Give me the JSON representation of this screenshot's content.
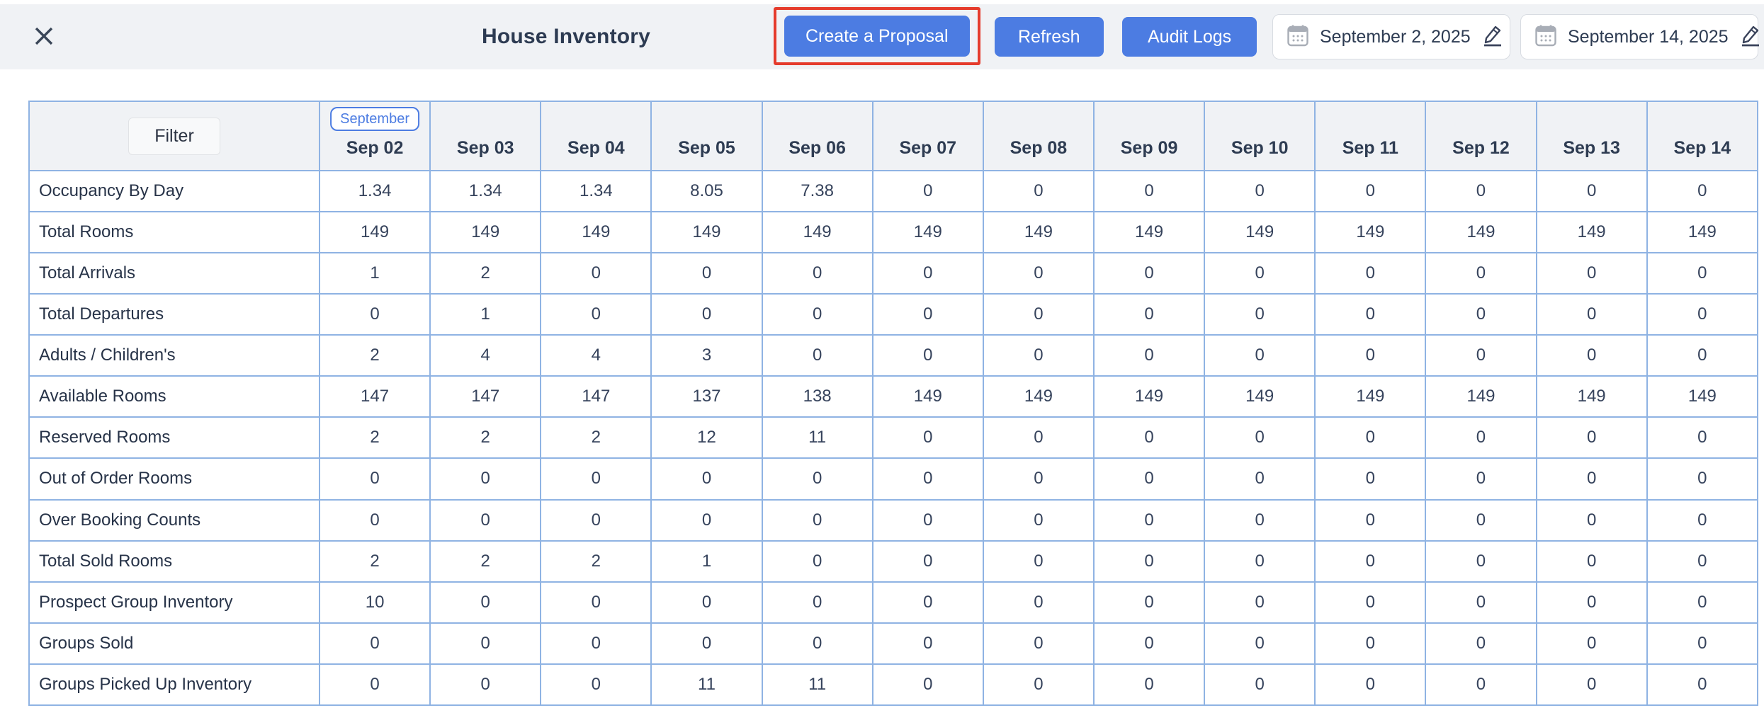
{
  "header": {
    "title": "House Inventory",
    "buttons": {
      "create_proposal": "Create a Proposal",
      "refresh": "Refresh",
      "audit_logs": "Audit Logs"
    },
    "start_date": "September 2, 2025",
    "end_date": "September 14, 2025"
  },
  "table": {
    "filter_label": "Filter",
    "month_badge": "September",
    "columns": [
      "Sep 02",
      "Sep 03",
      "Sep 04",
      "Sep 05",
      "Sep 06",
      "Sep 07",
      "Sep 08",
      "Sep 09",
      "Sep 10",
      "Sep 11",
      "Sep 12",
      "Sep 13",
      "Sep 14"
    ],
    "rows": [
      {
        "label": "Occupancy By Day",
        "values": [
          "1.34",
          "1.34",
          "1.34",
          "8.05",
          "7.38",
          "0",
          "0",
          "0",
          "0",
          "0",
          "0",
          "0",
          "0"
        ]
      },
      {
        "label": "Total Rooms",
        "values": [
          "149",
          "149",
          "149",
          "149",
          "149",
          "149",
          "149",
          "149",
          "149",
          "149",
          "149",
          "149",
          "149"
        ]
      },
      {
        "label": "Total Arrivals",
        "values": [
          "1",
          "2",
          "0",
          "0",
          "0",
          "0",
          "0",
          "0",
          "0",
          "0",
          "0",
          "0",
          "0"
        ]
      },
      {
        "label": "Total Departures",
        "values": [
          "0",
          "1",
          "0",
          "0",
          "0",
          "0",
          "0",
          "0",
          "0",
          "0",
          "0",
          "0",
          "0"
        ]
      },
      {
        "label": "Adults / Children's",
        "values": [
          "2",
          "4",
          "4",
          "3",
          "0",
          "0",
          "0",
          "0",
          "0",
          "0",
          "0",
          "0",
          "0"
        ]
      },
      {
        "label": "Available Rooms",
        "values": [
          "147",
          "147",
          "147",
          "137",
          "138",
          "149",
          "149",
          "149",
          "149",
          "149",
          "149",
          "149",
          "149"
        ]
      },
      {
        "label": "Reserved Rooms",
        "values": [
          "2",
          "2",
          "2",
          "12",
          "11",
          "0",
          "0",
          "0",
          "0",
          "0",
          "0",
          "0",
          "0"
        ]
      },
      {
        "label": "Out of Order Rooms",
        "values": [
          "0",
          "0",
          "0",
          "0",
          "0",
          "0",
          "0",
          "0",
          "0",
          "0",
          "0",
          "0",
          "0"
        ]
      },
      {
        "label": "Over Booking Counts",
        "values": [
          "0",
          "0",
          "0",
          "0",
          "0",
          "0",
          "0",
          "0",
          "0",
          "0",
          "0",
          "0",
          "0"
        ]
      },
      {
        "label": "Total Sold Rooms",
        "values": [
          "2",
          "2",
          "2",
          "1",
          "0",
          "0",
          "0",
          "0",
          "0",
          "0",
          "0",
          "0",
          "0"
        ]
      },
      {
        "label": "Prospect Group Inventory",
        "values": [
          "10",
          "0",
          "0",
          "0",
          "0",
          "0",
          "0",
          "0",
          "0",
          "0",
          "0",
          "0",
          "0"
        ]
      },
      {
        "label": "Groups Sold",
        "values": [
          "0",
          "0",
          "0",
          "0",
          "0",
          "0",
          "0",
          "0",
          "0",
          "0",
          "0",
          "0",
          "0"
        ]
      },
      {
        "label": "Groups Picked Up Inventory",
        "values": [
          "0",
          "0",
          "0",
          "11",
          "11",
          "0",
          "0",
          "0",
          "0",
          "0",
          "0",
          "0",
          "0"
        ]
      }
    ]
  },
  "colors": {
    "accent_blue": "#4c7ce2",
    "annotation_red": "#e53b2c",
    "table_border_blue": "#8fb3e3",
    "header_bar_bg": "#f0f2f5",
    "text_dark": "#2d3b52"
  }
}
